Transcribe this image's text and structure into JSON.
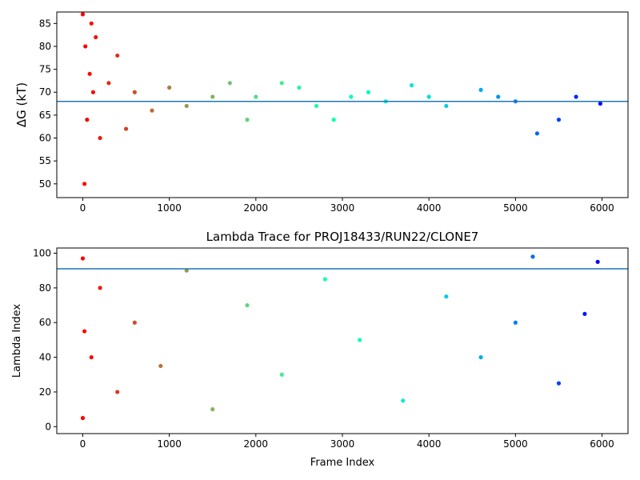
{
  "chart_data": [
    {
      "type": "scatter",
      "title": "",
      "xlabel": "",
      "ylabel": "ΔG (kT)",
      "xlim": [
        -300,
        6300
      ],
      "ylim": [
        47,
        87.5
      ],
      "xticks": [
        0,
        1000,
        2000,
        3000,
        4000,
        5000,
        6000
      ],
      "yticks": [
        50,
        55,
        60,
        65,
        70,
        75,
        80,
        85
      ],
      "grid": false,
      "reference_line": 68,
      "colormap": "rainbow (red at frame 0 to violet at frame 6000)",
      "series": [
        {
          "values": [
            {
              "x": 0,
              "y": 87
            },
            {
              "x": 20,
              "y": 50
            },
            {
              "x": 30,
              "y": 80
            },
            {
              "x": 50,
              "y": 64
            },
            {
              "x": 80,
              "y": 74
            },
            {
              "x": 100,
              "y": 85
            },
            {
              "x": 120,
              "y": 70
            },
            {
              "x": 150,
              "y": 82
            },
            {
              "x": 200,
              "y": 60
            },
            {
              "x": 300,
              "y": 72
            },
            {
              "x": 400,
              "y": 78
            },
            {
              "x": 500,
              "y": 62
            },
            {
              "x": 600,
              "y": 70
            },
            {
              "x": 800,
              "y": 66
            },
            {
              "x": 1000,
              "y": 71
            },
            {
              "x": 1200,
              "y": 67
            },
            {
              "x": 1500,
              "y": 69
            },
            {
              "x": 1700,
              "y": 72
            },
            {
              "x": 1900,
              "y": 64
            },
            {
              "x": 2000,
              "y": 69
            },
            {
              "x": 2300,
              "y": 72
            },
            {
              "x": 2500,
              "y": 71
            },
            {
              "x": 2700,
              "y": 67
            },
            {
              "x": 2900,
              "y": 64
            },
            {
              "x": 3100,
              "y": 69
            },
            {
              "x": 3300,
              "y": 70
            },
            {
              "x": 3500,
              "y": 68
            },
            {
              "x": 3800,
              "y": 71.5
            },
            {
              "x": 4000,
              "y": 69
            },
            {
              "x": 4200,
              "y": 67
            },
            {
              "x": 4600,
              "y": 70.5
            },
            {
              "x": 4800,
              "y": 69
            },
            {
              "x": 5000,
              "y": 68
            },
            {
              "x": 5250,
              "y": 61
            },
            {
              "x": 5500,
              "y": 64
            },
            {
              "x": 5700,
              "y": 69
            },
            {
              "x": 5980,
              "y": 67.5
            }
          ]
        }
      ]
    },
    {
      "type": "scatter",
      "title": "Lambda Trace for PROJ18433/RUN22/CLONE7",
      "xlabel": "Frame Index",
      "ylabel": "Lambda Index",
      "xlim": [
        -300,
        6300
      ],
      "ylim": [
        -4,
        103
      ],
      "xticks": [
        0,
        1000,
        2000,
        3000,
        4000,
        5000,
        6000
      ],
      "yticks": [
        0,
        20,
        40,
        60,
        80,
        100
      ],
      "grid": false,
      "reference_line": 91,
      "colormap": "rainbow (red at frame 0 to violet at frame 6000)",
      "series": [
        {
          "values": [
            {
              "x": 0,
              "y": 97
            },
            {
              "x": 0,
              "y": 5
            },
            {
              "x": 20,
              "y": 55
            },
            {
              "x": 100,
              "y": 40
            },
            {
              "x": 200,
              "y": 80
            },
            {
              "x": 400,
              "y": 20
            },
            {
              "x": 600,
              "y": 60
            },
            {
              "x": 900,
              "y": 35
            },
            {
              "x": 1200,
              "y": 90
            },
            {
              "x": 1500,
              "y": 10
            },
            {
              "x": 1900,
              "y": 70
            },
            {
              "x": 2300,
              "y": 30
            },
            {
              "x": 2800,
              "y": 85
            },
            {
              "x": 3200,
              "y": 50
            },
            {
              "x": 3700,
              "y": 15
            },
            {
              "x": 4200,
              "y": 75
            },
            {
              "x": 4600,
              "y": 40
            },
            {
              "x": 5000,
              "y": 60
            },
            {
              "x": 5200,
              "y": 98
            },
            {
              "x": 5500,
              "y": 25
            },
            {
              "x": 5800,
              "y": 65
            },
            {
              "x": 5950,
              "y": 95
            }
          ]
        }
      ]
    }
  ]
}
